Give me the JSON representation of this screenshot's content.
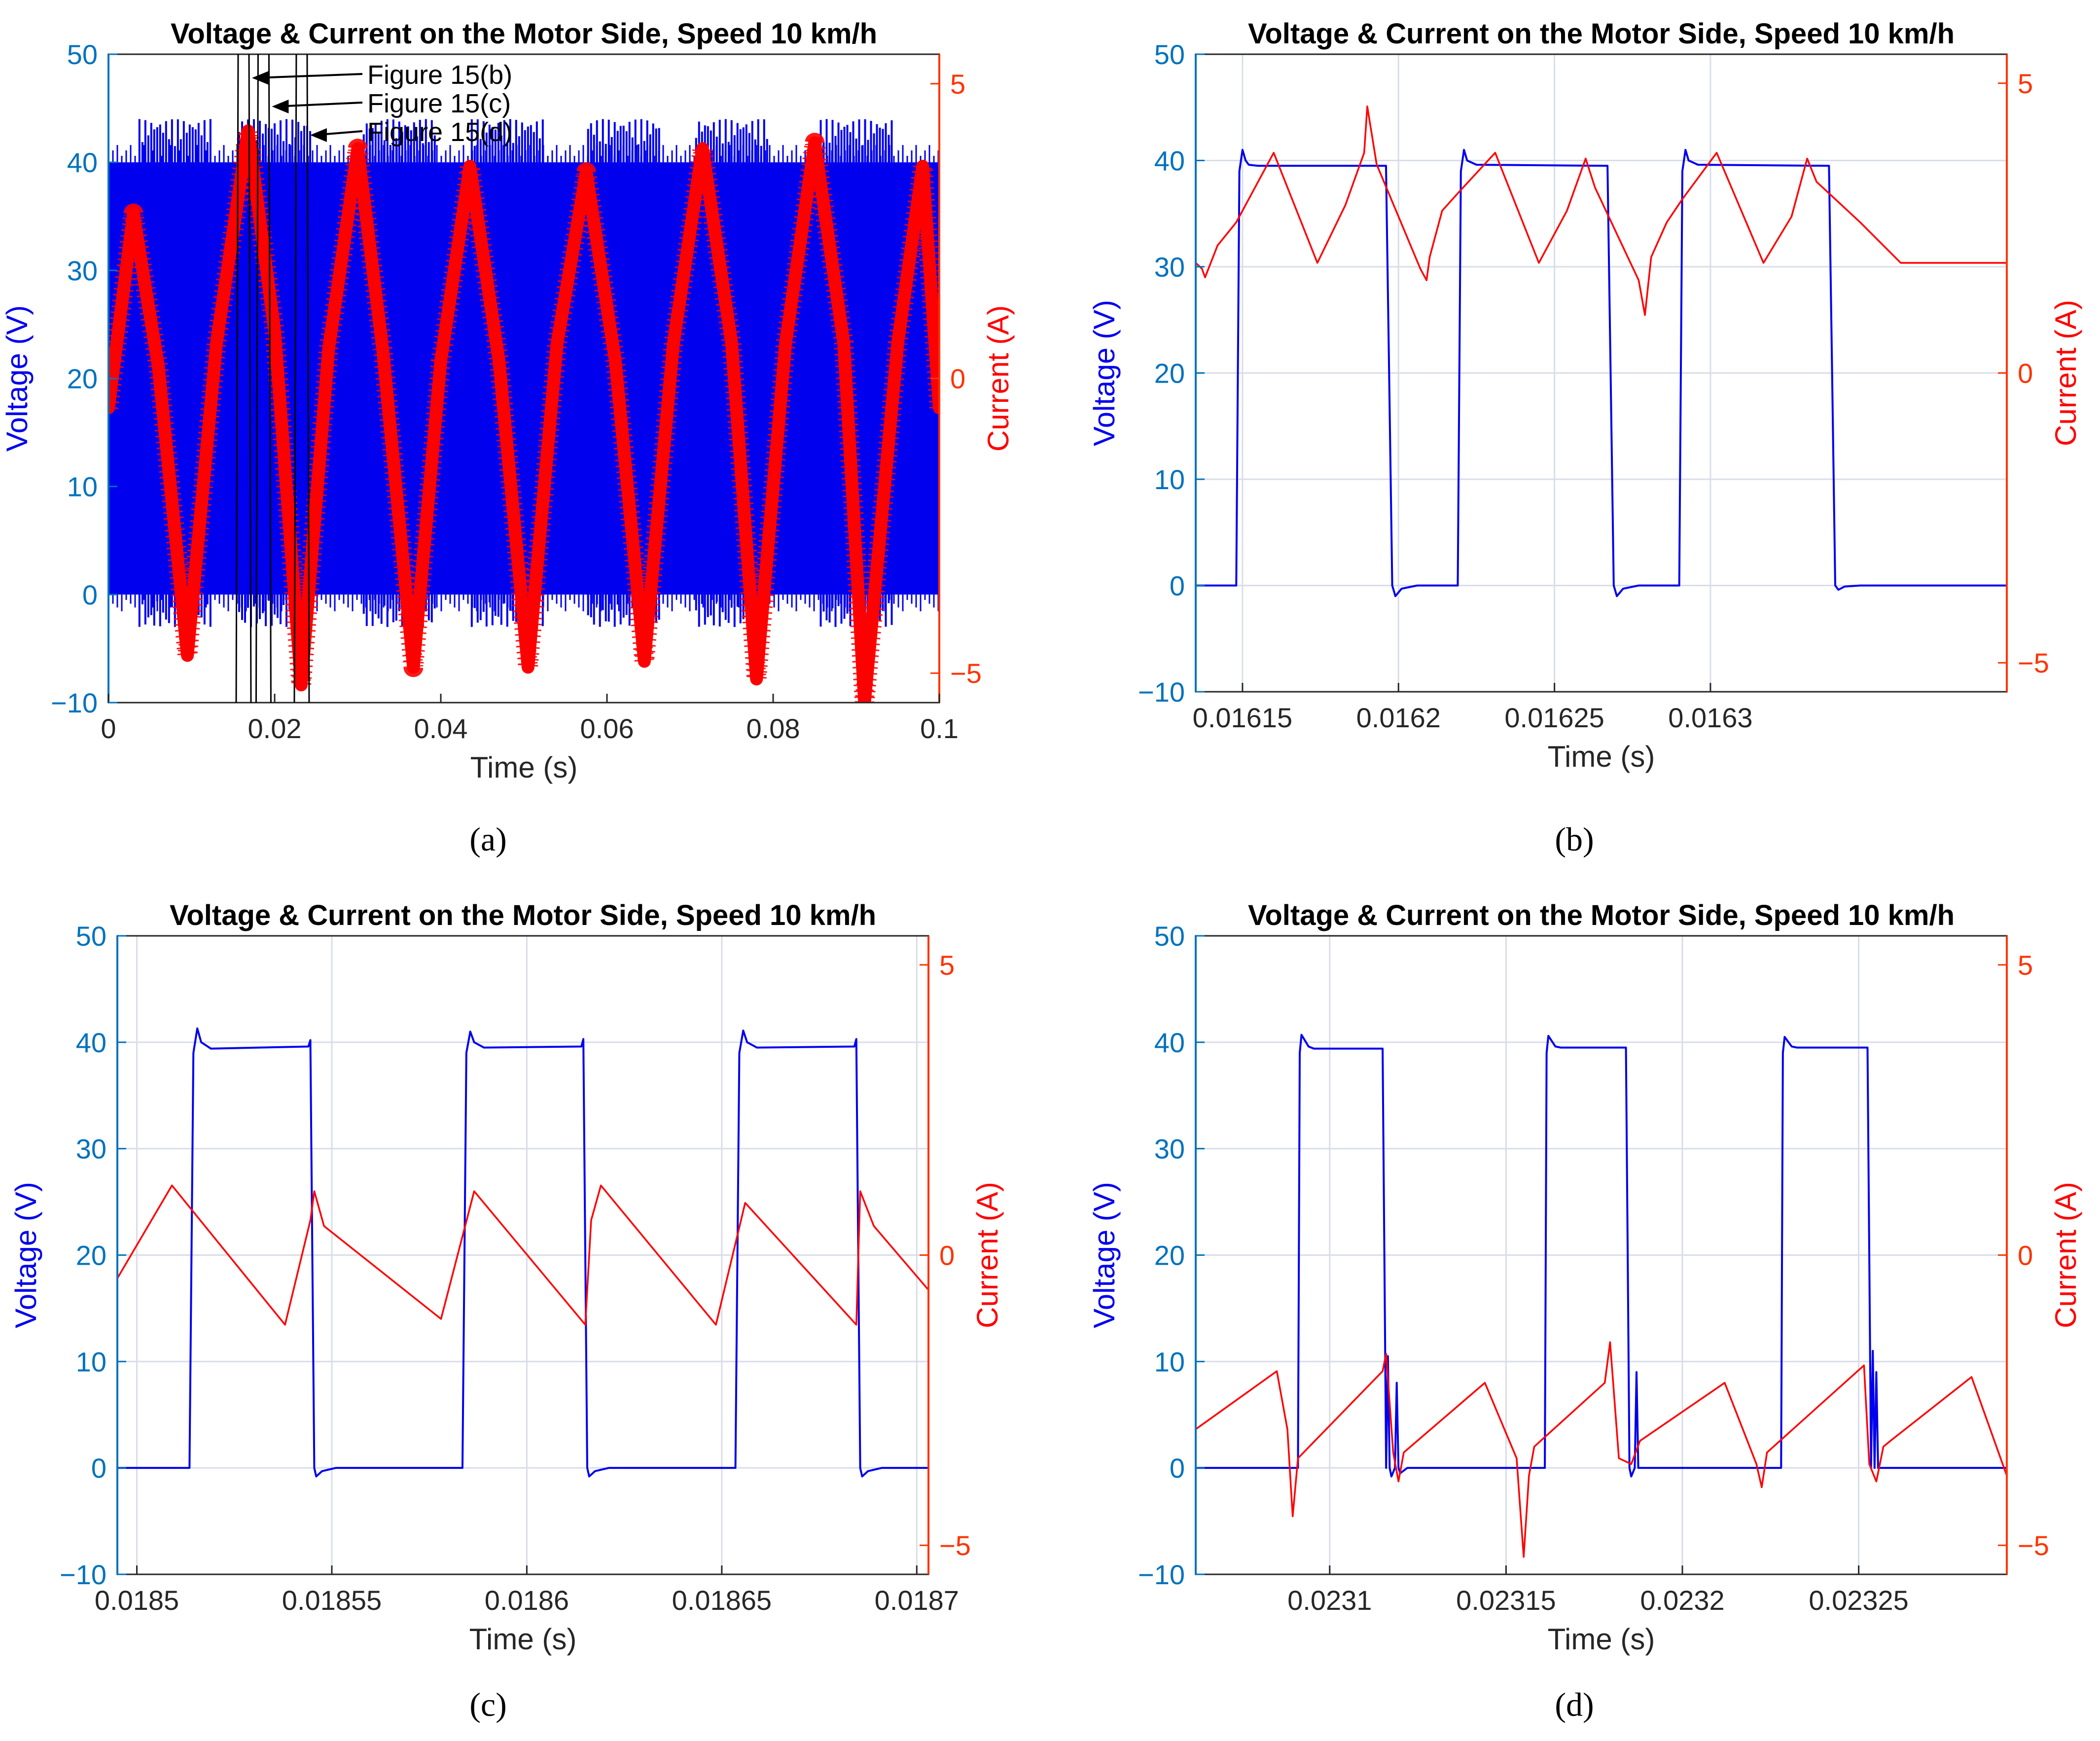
{
  "chart_data": [
    {
      "panel": "a",
      "type": "line",
      "title": "Voltage & Current on the Motor Side, Speed 10 km/h",
      "xlabel": "Time (s)",
      "ylabel": "Voltage (V)",
      "y2label": "Current (A)",
      "xlim": [
        0,
        0.1
      ],
      "ylim": [
        -10,
        50
      ],
      "y2lim": [
        -5.5,
        5.5
      ],
      "xticks": [
        0,
        0.02,
        0.04,
        0.06,
        0.08,
        0.1
      ],
      "xtick_labels": [
        "0",
        "0.02",
        "0.04",
        "0.06",
        "0.08",
        "0.1"
      ],
      "yticks": [
        -10,
        0,
        10,
        20,
        30,
        40,
        50
      ],
      "ytick_labels": [
        "−10",
        "0",
        "10",
        "20",
        "30",
        "40",
        "50"
      ],
      "y2ticks": [
        -5,
        0,
        5
      ],
      "y2tick_labels": [
        "−5",
        "0",
        "5"
      ],
      "grid": false,
      "voltage_band": {
        "low": 0,
        "high": 40,
        "spike_max": 44,
        "dip_min": -3
      },
      "voltage_spike_times": [
        0.008,
        0.02,
        0.035,
        0.048,
        0.062,
        0.075,
        0.09
      ],
      "current_envelope": {
        "x": [
          0,
          0.003,
          0.006,
          0.0095,
          0.013,
          0.0168,
          0.02,
          0.0232,
          0.0265,
          0.03,
          0.033,
          0.0367,
          0.04,
          0.0435,
          0.047,
          0.0505,
          0.054,
          0.0575,
          0.061,
          0.0645,
          0.068,
          0.0715,
          0.075,
          0.078,
          0.0815,
          0.085,
          0.0885,
          0.091,
          0.095,
          0.098,
          0.1
        ],
        "y": [
          -0.5,
          2.8,
          0.2,
          -4.7,
          0.6,
          4.2,
          0.8,
          -5.2,
          0.5,
          3.9,
          0.5,
          -4.9,
          0.3,
          3.6,
          0.3,
          -4.9,
          0.6,
          3.5,
          0.3,
          -4.8,
          0.6,
          3.9,
          0.6,
          -5.1,
          0.6,
          4.0,
          0.6,
          -5.5,
          0.6,
          3.6,
          -0.5
        ]
      },
      "markers": [
        {
          "label": "Figure 15(b)",
          "x": 0.0162
        },
        {
          "label": "Figure 15(c)",
          "x": 0.0186
        },
        {
          "label": "Figure 15(d)",
          "x": 0.0232
        }
      ],
      "series": [
        {
          "name": "Voltage (V)",
          "axis": "left"
        },
        {
          "name": "Current (A)",
          "axis": "right"
        }
      ]
    },
    {
      "panel": "b",
      "type": "line",
      "title": "Voltage & Current on the Motor Side, Speed 10 km/h",
      "xlabel": "Time (s)",
      "ylabel": "Voltage (V)",
      "y2label": "Current (A)",
      "xlim": [
        0.016135,
        0.016395
      ],
      "ylim": [
        -10,
        50
      ],
      "y2lim": [
        -5.5,
        5.5
      ],
      "xticks": [
        0.01615,
        0.0162,
        0.01625,
        0.0163
      ],
      "xtick_labels": [
        "0.01615",
        "0.0162",
        "0.01625",
        "0.0163"
      ],
      "yticks": [
        -10,
        0,
        10,
        20,
        30,
        40,
        50
      ],
      "ytick_labels": [
        "−10",
        "0",
        "10",
        "20",
        "30",
        "40",
        "50"
      ],
      "y2ticks": [
        -5,
        0,
        5
      ],
      "y2tick_labels": [
        "−5",
        "0",
        "5"
      ],
      "grid": true,
      "series": [
        {
          "name": "Voltage (V)",
          "axis": "left",
          "x": [
            0.016135,
            0.016148,
            0.016149,
            0.01615,
            0.016151,
            0.016152,
            0.016155,
            0.016196,
            0.016197,
            0.016198,
            0.016199,
            0.016201,
            0.016206,
            0.016219,
            0.01622,
            0.016221,
            0.016222,
            0.016225,
            0.016267,
            0.016268,
            0.016269,
            0.01627,
            0.016272,
            0.016277,
            0.01629,
            0.016291,
            0.016292,
            0.016293,
            0.016296,
            0.016338,
            0.016339,
            0.01634,
            0.016341,
            0.016343,
            0.016348,
            0.016395
          ],
          "y": [
            0,
            0,
            39,
            41,
            40,
            39.6,
            39.5,
            39.5,
            20,
            0,
            -1,
            -0.3,
            0,
            0,
            39,
            41,
            40,
            39.6,
            39.5,
            20,
            0,
            -1,
            -0.3,
            0,
            0,
            39,
            41,
            40,
            39.6,
            39.5,
            20,
            0,
            -0.4,
            -0.1,
            0,
            0
          ]
        },
        {
          "name": "Current (A)",
          "axis": "right",
          "x": [
            0.016135,
            0.016137,
            0.016138,
            0.016142,
            0.016148,
            0.01616,
            0.016174,
            0.016183,
            0.016189,
            0.01619,
            0.016193,
            0.016207,
            0.016209,
            0.01621,
            0.016214,
            0.016219,
            0.016231,
            0.016245,
            0.016254,
            0.01626,
            0.016263,
            0.016277,
            0.016279,
            0.016281,
            0.016286,
            0.016291,
            0.016302,
            0.016317,
            0.016326,
            0.016331,
            0.016334,
            0.016348,
            0.016361,
            0.016395
          ],
          "y": [
            1.9,
            1.8,
            1.65,
            2.2,
            2.6,
            3.8,
            1.9,
            2.9,
            3.8,
            4.6,
            3.6,
            1.8,
            1.6,
            2.0,
            2.8,
            3.1,
            3.8,
            1.9,
            2.8,
            3.7,
            3.2,
            1.6,
            1.0,
            2.0,
            2.6,
            3.0,
            3.8,
            1.9,
            2.7,
            3.7,
            3.3,
            2.6,
            1.9,
            1.9
          ]
        }
      ]
    },
    {
      "panel": "c",
      "type": "line",
      "title": "Voltage & Current on the Motor Side, Speed 10 km/h",
      "xlabel": "Time (s)",
      "ylabel": "Voltage (V)",
      "y2label": "Current (A)",
      "xlim": [
        0.018495,
        0.018703
      ],
      "ylim": [
        -10,
        50
      ],
      "y2lim": [
        -5.5,
        5.5
      ],
      "xticks": [
        0.0185,
        0.01855,
        0.0186,
        0.01865,
        0.0187
      ],
      "xtick_labels": [
        "0.0185",
        "0.01855",
        "0.0186",
        "0.01865",
        "0.0187"
      ],
      "yticks": [
        -10,
        0,
        10,
        20,
        30,
        40,
        50
      ],
      "ytick_labels": [
        "−10",
        "0",
        "10",
        "20",
        "30",
        "40",
        "50"
      ],
      "y2ticks": [
        -5,
        0,
        5
      ],
      "y2tick_labels": [
        "−5",
        "0",
        "5"
      ],
      "grid": true,
      "series": [
        {
          "name": "Voltage (V)",
          "axis": "left",
          "x": [
            0.018495,
            0.0185135,
            0.0185145,
            0.0185155,
            0.0185165,
            0.018519,
            0.018544,
            0.0185445,
            0.018545,
            0.0185455,
            0.018546,
            0.0185475,
            0.018551,
            0.0185835,
            0.0185845,
            0.0185855,
            0.0185865,
            0.018589,
            0.018614,
            0.0186145,
            0.018615,
            0.0186155,
            0.018616,
            0.0186175,
            0.018621,
            0.0186535,
            0.0186545,
            0.0186555,
            0.0186565,
            0.018659,
            0.018684,
            0.0186845,
            0.018685,
            0.0186855,
            0.018686,
            0.0186875,
            0.018691,
            0.018703
          ],
          "y": [
            0,
            0,
            39,
            41.3,
            40,
            39.4,
            39.6,
            40.2,
            20,
            0,
            -0.8,
            -0.3,
            0,
            0,
            39,
            41,
            40,
            39.5,
            39.6,
            40.3,
            20,
            0,
            -0.8,
            -0.3,
            0,
            0,
            39,
            41.1,
            40,
            39.5,
            39.6,
            40.3,
            20,
            0,
            -0.8,
            -0.3,
            0,
            0
          ]
        },
        {
          "name": "Current (A)",
          "axis": "right",
          "x": [
            0.018495,
            0.018502,
            0.018509,
            0.018538,
            0.0185445,
            0.0185455,
            0.018548,
            0.018578,
            0.0185865,
            0.018615,
            0.0186165,
            0.018619,
            0.0186485,
            0.018656,
            0.0186845,
            0.0186855,
            0.018689,
            0.018703
          ],
          "y": [
            -0.4,
            0.4,
            1.2,
            -1.2,
            0.6,
            1.1,
            0.5,
            -1.1,
            1.1,
            -1.2,
            0.6,
            1.2,
            -1.2,
            0.9,
            -1.2,
            1.1,
            0.5,
            -0.6
          ]
        }
      ]
    },
    {
      "panel": "d",
      "type": "line",
      "title": "Voltage & Current on the Motor Side, Speed 10 km/h",
      "xlabel": "Time (s)",
      "ylabel": "Voltage (V)",
      "y2label": "Current (A)",
      "xlim": [
        0.023062,
        0.023292
      ],
      "ylim": [
        -10,
        50
      ],
      "y2lim": [
        -5.5,
        5.5
      ],
      "xticks": [
        0.0231,
        0.02315,
        0.0232,
        0.02325
      ],
      "xtick_labels": [
        "0.0231",
        "0.02315",
        "0.0232",
        "0.02325"
      ],
      "yticks": [
        -10,
        0,
        10,
        20,
        30,
        40,
        50
      ],
      "ytick_labels": [
        "−10",
        "0",
        "10",
        "20",
        "30",
        "40",
        "50"
      ],
      "y2ticks": [
        -5,
        0,
        5
      ],
      "y2tick_labels": [
        "−5",
        "0",
        "5"
      ],
      "grid": true,
      "series": [
        {
          "name": "Voltage (V)",
          "axis": "left",
          "x": [
            0.023062,
            0.023091,
            0.0230915,
            0.023092,
            0.023094,
            0.0230955,
            0.023115,
            0.0231155,
            0.023116,
            0.0231165,
            0.023117,
            0.0231175,
            0.0231185,
            0.023119,
            0.0231195,
            0.02312,
            0.023122,
            0.023161,
            0.0231615,
            0.023162,
            0.023164,
            0.0231655,
            0.023184,
            0.0231845,
            0.023185,
            0.0231855,
            0.0231865,
            0.023187,
            0.0231875,
            0.023189,
            0.023228,
            0.0232285,
            0.023229,
            0.023231,
            0.0232325,
            0.0232525,
            0.023253,
            0.0232535,
            0.023254,
            0.0232545,
            0.023255,
            0.0232555,
            0.023257,
            0.023292
          ],
          "y": [
            0,
            0,
            39,
            40.7,
            39.6,
            39.4,
            39.4,
            20,
            0,
            10.5,
            0,
            -0.8,
            0,
            8,
            0,
            -0.5,
            0,
            0,
            39,
            40.6,
            39.6,
            39.5,
            39.5,
            20,
            0,
            -0.8,
            0,
            9,
            0,
            0,
            0,
            39,
            40.5,
            39.6,
            39.5,
            39.5,
            20,
            0,
            11,
            0,
            9,
            0,
            0,
            0
          ]
        },
        {
          "name": "Current (A)",
          "axis": "right",
          "x": [
            0.023062,
            0.023085,
            0.023088,
            0.0230895,
            0.023091,
            0.023115,
            0.023116,
            0.023118,
            0.0231195,
            0.023121,
            0.023144,
            0.023153,
            0.023155,
            0.0231565,
            0.023158,
            0.023178,
            0.0231795,
            0.023182,
            0.0231855,
            0.023188,
            0.023212,
            0.023221,
            0.0232225,
            0.023224,
            0.0232515,
            0.023253,
            0.023255,
            0.023257,
            0.023259,
            0.023282,
            0.023292
          ],
          "y": [
            -3.0,
            -2.0,
            -3.0,
            -4.5,
            -3.5,
            -2.0,
            -1.7,
            -3.4,
            -3.9,
            -3.4,
            -2.2,
            -3.5,
            -5.2,
            -3.8,
            -3.3,
            -2.2,
            -1.5,
            -3.5,
            -3.6,
            -3.2,
            -2.2,
            -3.6,
            -4.0,
            -3.4,
            -1.9,
            -3.6,
            -3.9,
            -3.3,
            -3.2,
            -2.1,
            -3.8
          ]
        }
      ]
    }
  ],
  "panel_letters": [
    "(a)",
    "(b)",
    "(c)",
    "(d)"
  ],
  "colors": {
    "voltage": "#0000ee",
    "current": "#ff0000",
    "left_axis": "#0072bd",
    "right_axis": "#ff3300",
    "grid": "#d9dde8",
    "annotation": "#000000"
  }
}
